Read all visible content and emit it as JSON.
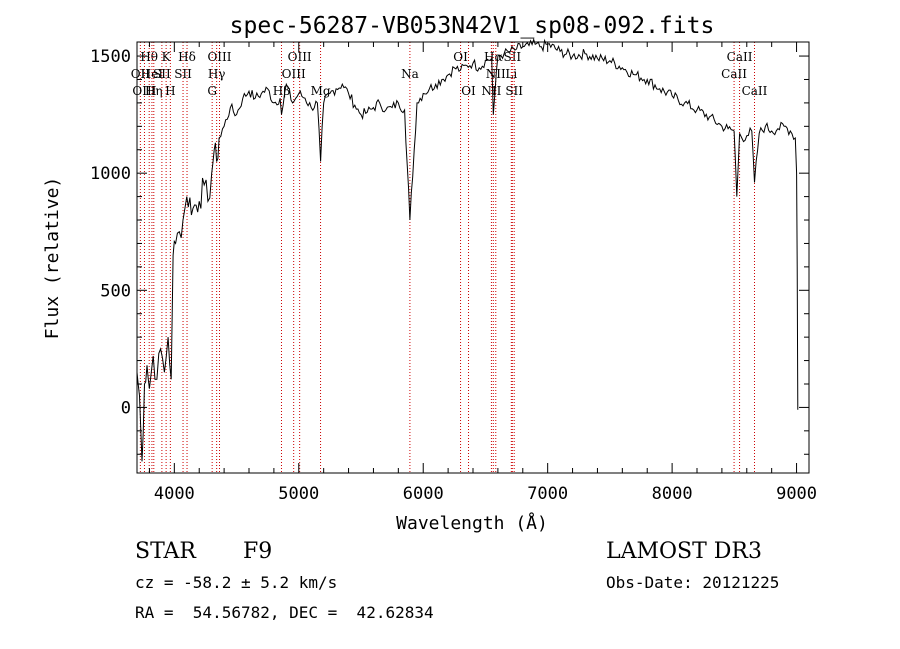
{
  "chart_data": {
    "type": "line",
    "title": "spec-56287-VB053N42V1_sp08-092.fits",
    "xlabel": "Wavelength (Å)",
    "ylabel": "Flux (relative)",
    "xlim": [
      3700,
      9100
    ],
    "ylim": [
      -280,
      1560
    ],
    "xticks": [
      4000,
      5000,
      6000,
      7000,
      8000,
      9000
    ],
    "yticks": [
      0,
      500,
      1000,
      1500
    ],
    "grid": false,
    "line_color": "#000000",
    "marker_color": "#cc0000",
    "series": [
      {
        "x": [
          3700,
          3720,
          3740,
          3760,
          3780,
          3800,
          3830,
          3860,
          3890,
          3920,
          3950,
          3975,
          3990,
          4010,
          4040,
          4070,
          4100,
          4150,
          4200,
          4240,
          4270,
          4300,
          4320,
          4340,
          4360,
          4400,
          4450,
          4500,
          4550,
          4600,
          4650,
          4700,
          4750,
          4800,
          4850,
          4861,
          4900,
          4950,
          5000,
          5050,
          5100,
          5150,
          5175,
          5200,
          5250,
          5300,
          5350,
          5400,
          5450,
          5500,
          5550,
          5600,
          5650,
          5700,
          5750,
          5800,
          5850,
          5893,
          5950,
          6000,
          6050,
          6100,
          6150,
          6200,
          6250,
          6300,
          6350,
          6400,
          6450,
          6500,
          6550,
          6563,
          6600,
          6650,
          6700,
          6750,
          6800,
          6850,
          6900,
          6950,
          7000,
          7100,
          7200,
          7300,
          7400,
          7500,
          7600,
          7700,
          7800,
          7900,
          8000,
          8100,
          8200,
          8300,
          8400,
          8450,
          8498,
          8520,
          8542,
          8560,
          8600,
          8640,
          8662,
          8700,
          8750,
          8800,
          8850,
          8900,
          8950,
          8990,
          9000,
          9005,
          9010
        ],
        "y": [
          150,
          50,
          -230,
          100,
          180,
          80,
          220,
          120,
          250,
          150,
          300,
          120,
          650,
          700,
          750,
          800,
          900,
          850,
          880,
          950,
          880,
          1000,
          1100,
          1050,
          1150,
          1200,
          1280,
          1250,
          1320,
          1350,
          1320,
          1340,
          1360,
          1300,
          1320,
          1250,
          1380,
          1300,
          1340,
          1320,
          1280,
          1300,
          1050,
          1300,
          1340,
          1360,
          1380,
          1340,
          1290,
          1250,
          1260,
          1280,
          1300,
          1270,
          1280,
          1300,
          1270,
          800,
          1300,
          1340,
          1360,
          1380,
          1400,
          1420,
          1450,
          1440,
          1460,
          1470,
          1450,
          1480,
          1490,
          1250,
          1500,
          1510,
          1520,
          1530,
          1540,
          1545,
          1550,
          1540,
          1550,
          1520,
          1500,
          1510,
          1490,
          1480,
          1450,
          1420,
          1400,
          1360,
          1330,
          1300,
          1270,
          1240,
          1200,
          1190,
          1180,
          900,
          1170,
          1150,
          1160,
          1180,
          960,
          1170,
          1200,
          1180,
          1190,
          1200,
          1180,
          1150,
          1000,
          600,
          -10
        ]
      }
    ],
    "line_markers": [
      {
        "label": "Hθ",
        "x": 3798,
        "row": 1
      },
      {
        "label": "OII",
        "x": 3727,
        "row": 2
      },
      {
        "label": "HeI",
        "x": 3820,
        "row": 2
      },
      {
        "label": "OIII",
        "x": 3760,
        "row": 3
      },
      {
        "label": "Hη",
        "x": 3835,
        "row": 3
      },
      {
        "label": "K",
        "x": 3934,
        "row": 1
      },
      {
        "label": "SII",
        "x": 3900,
        "row": 2
      },
      {
        "label": "H",
        "x": 3968,
        "row": 3
      },
      {
        "label": "Hδ",
        "x": 4102,
        "row": 1
      },
      {
        "label": "SII",
        "x": 4070,
        "row": 2
      },
      {
        "label": "OIII",
        "x": 4363,
        "row": 1
      },
      {
        "label": "Hγ",
        "x": 4340,
        "row": 2
      },
      {
        "label": "G",
        "x": 4304,
        "row": 3
      },
      {
        "label": "OIII",
        "x": 5007,
        "row": 1
      },
      {
        "label": "OIII",
        "x": 4959,
        "row": 2
      },
      {
        "label": "Hβ",
        "x": 4861,
        "row": 3
      },
      {
        "label": "Mg",
        "x": 5175,
        "row": 3
      },
      {
        "label": "Na",
        "x": 5893,
        "row": 2
      },
      {
        "label": "OI",
        "x": 6300,
        "row": 1
      },
      {
        "label": "OI",
        "x": 6364,
        "row": 3
      },
      {
        "label": "Hα",
        "x": 6563,
        "row": 1
      },
      {
        "label": "NII",
        "x": 6583,
        "row": 2
      },
      {
        "label": "SII",
        "x": 6716,
        "row": 1
      },
      {
        "label": "Li",
        "x": 6708,
        "row": 2
      },
      {
        "label": "NII",
        "x": 6548,
        "row": 3
      },
      {
        "label": "SII",
        "x": 6731,
        "row": 3
      },
      {
        "label": "CaII",
        "x": 8542,
        "row": 1
      },
      {
        "label": "CaII",
        "x": 8498,
        "row": 2
      },
      {
        "label": "CaII",
        "x": 8662,
        "row": 3
      }
    ]
  },
  "info": {
    "object_type": "STAR",
    "subclass": "F9",
    "survey": "LAMOST DR3",
    "cz": "cz = -58.2 ± 5.2 km/s",
    "obs_date": "Obs-Date: 20121225",
    "coords": "RA =  54.56782, DEC =  42.62834"
  }
}
